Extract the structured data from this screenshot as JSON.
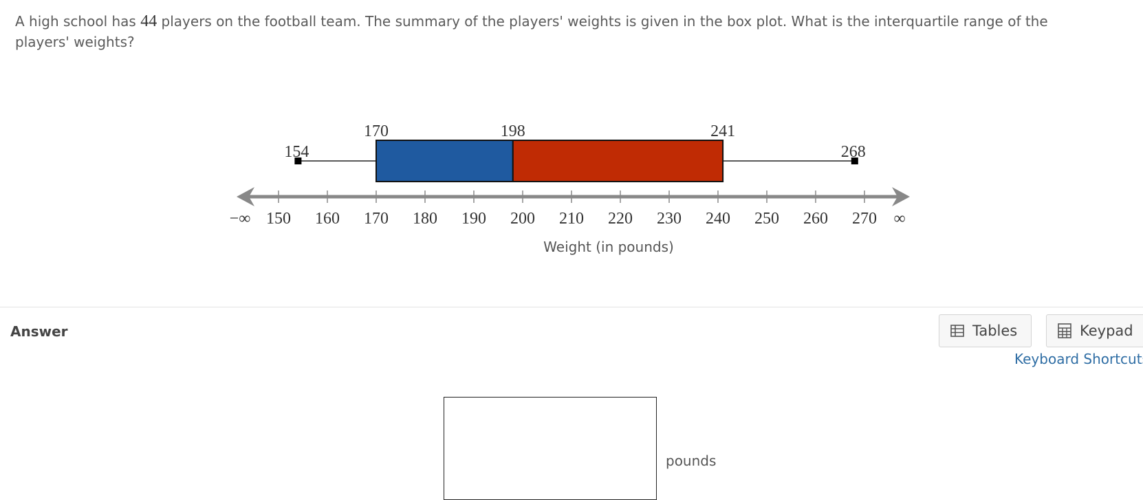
{
  "question": {
    "pre": "A high school has ",
    "count": "44",
    "post": " players on the football team.  The summary of the players' weights is given in the box plot.  What is the interquartile range of the players' weights?"
  },
  "chart_data": {
    "type": "boxplot",
    "min": 154,
    "q1": 170,
    "median": 198,
    "q3": 241,
    "max": 268,
    "axis": {
      "xlim": [
        150,
        270
      ],
      "ticks": [
        150,
        160,
        170,
        180,
        190,
        200,
        210,
        220,
        230,
        240,
        250,
        260,
        270
      ],
      "left_label": "−∞",
      "right_label": "∞",
      "xlabel": "Weight (in pounds)"
    },
    "colors": {
      "lower_box": "#1f5aa0",
      "upper_box": "#c02b04",
      "axis": "#888888"
    }
  },
  "answer": {
    "label": "Answer",
    "tables_label": "Tables",
    "keypad_label": "Keypad",
    "shortcuts_label": "Keyboard Shortcuts",
    "unit": "pounds",
    "value": ""
  }
}
